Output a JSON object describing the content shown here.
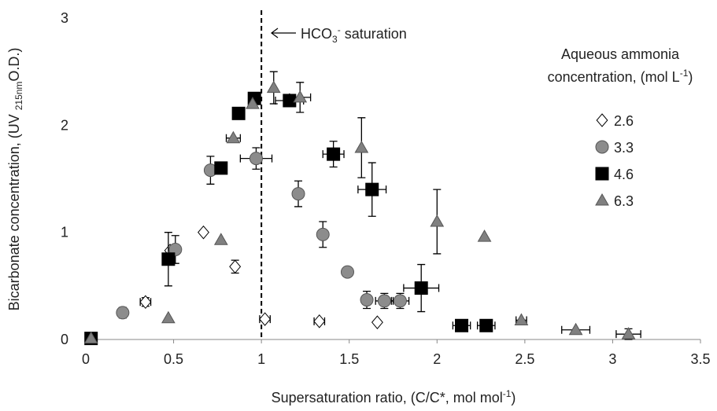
{
  "chart_data": {
    "type": "scatter",
    "ylabel": [
      "Bicarbonate concentration, (UV ",
      "215nm",
      "O.D.)"
    ],
    "xlabel": [
      "Supersaturation  ratio, (C/C*, mol mol",
      "-1",
      ")"
    ],
    "legend_title": [
      "Aqueous ammonia",
      "concentration, (mol L",
      "-1",
      ")"
    ],
    "annotation": [
      "HCO",
      "3",
      "-",
      " saturation"
    ],
    "vline": 1,
    "xlim": [
      0,
      3.5
    ],
    "xticks": [
      0,
      0.5,
      1,
      1.5,
      2,
      2.5,
      3,
      3.5
    ],
    "ylim": [
      0,
      3
    ],
    "yticks": [
      0,
      1,
      2,
      3
    ],
    "series": [
      {
        "name": "2.6",
        "marker": "diamond",
        "color": "#ffffff",
        "x": [
          0.34,
          0.48,
          0.67,
          0.85,
          1.02,
          1.33,
          1.66
        ],
        "y": [
          0.35,
          0.83,
          1.0,
          0.68,
          0.19,
          0.17,
          0.16
        ],
        "xerr": [
          0.03,
          null,
          null,
          null,
          0.03,
          0.03,
          null
        ],
        "yerr": [
          0.04,
          null,
          null,
          0.06,
          null,
          null,
          null
        ]
      },
      {
        "name": "3.3",
        "marker": "circle",
        "color": "#8c8c8c",
        "x": [
          0.21,
          0.51,
          0.71,
          0.97,
          1.21,
          1.35,
          1.49,
          1.6,
          1.7,
          1.79
        ],
        "y": [
          0.25,
          0.84,
          1.58,
          1.69,
          1.36,
          0.98,
          0.63,
          0.37,
          0.36,
          0.36
        ],
        "xerr": [
          null,
          null,
          null,
          0.09,
          null,
          null,
          null,
          null,
          0.05,
          0.05
        ],
        "yerr": [
          0.05,
          0.13,
          0.13,
          0.1,
          0.12,
          0.12,
          null,
          0.08,
          0.07,
          0.07
        ]
      },
      {
        "name": "4.6",
        "marker": "square",
        "color": "#000000",
        "x": [
          0.03,
          0.47,
          0.77,
          0.87,
          0.96,
          1.16,
          1.41,
          1.63,
          1.91,
          2.14,
          2.28
        ],
        "y": [
          0.01,
          0.75,
          1.6,
          2.11,
          2.25,
          2.23,
          1.73,
          1.4,
          0.48,
          0.13,
          0.13
        ],
        "xerr": [
          null,
          null,
          null,
          null,
          null,
          0.08,
          0.06,
          0.08,
          0.1,
          0.05,
          0.05
        ],
        "yerr": [
          null,
          0.25,
          null,
          null,
          null,
          null,
          0.12,
          0.25,
          0.22,
          null,
          null
        ]
      },
      {
        "name": "6.3",
        "marker": "triangle",
        "color": "#808080",
        "x": [
          0.03,
          0.47,
          0.77,
          0.84,
          0.95,
          1.07,
          1.22,
          1.57,
          2.0,
          2.27,
          2.48,
          2.79,
          3.09
        ],
        "y": [
          0.01,
          0.2,
          0.93,
          1.88,
          2.2,
          2.35,
          2.26,
          1.79,
          1.1,
          0.96,
          0.18,
          0.09,
          0.05
        ],
        "xerr": [
          null,
          null,
          null,
          0.04,
          null,
          null,
          0.06,
          null,
          null,
          null,
          0.03,
          0.08,
          0.07
        ],
        "yerr": [
          null,
          null,
          null,
          null,
          null,
          0.15,
          0.14,
          0.28,
          0.3,
          null,
          null,
          null,
          0.05
        ]
      }
    ]
  }
}
